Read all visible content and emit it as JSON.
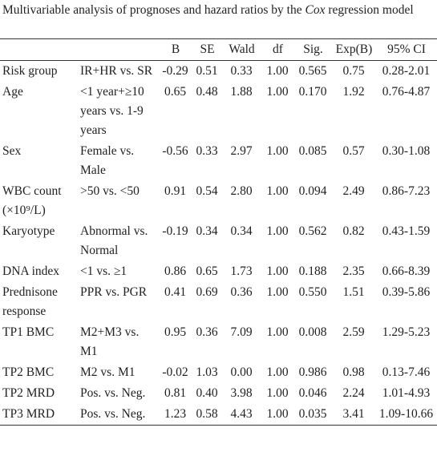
{
  "title": {
    "before": "Multivariable analysis of prognoses and hazard ratios by the ",
    "italic": "Cox",
    "after": " regression model"
  },
  "table": {
    "columns": [
      "B",
      "SE",
      "Wald",
      "df",
      "Sig.",
      "Exp(B)",
      "95% CI"
    ],
    "rows": [
      [
        "Risk group",
        "IR+HR vs. SR",
        "-0.29",
        "0.51",
        "0.33",
        "1.00",
        "0.565",
        "0.75",
        "0.28-2.01"
      ],
      [
        "Age",
        "<1 year+≥10 years vs. 1-9 years",
        "0.65",
        "0.48",
        "1.88",
        "1.00",
        "0.170",
        "1.92",
        "0.76-4.87"
      ],
      [
        "Sex",
        "Female vs. Male",
        "-0.56",
        "0.33",
        "2.97",
        "1.00",
        "0.085",
        "0.57",
        "0.30-1.08"
      ],
      [
        "WBC count (×10⁹/L)",
        ">50 vs. <50",
        "0.91",
        "0.54",
        "2.80",
        "1.00",
        "0.094",
        "2.49",
        "0.86-7.23"
      ],
      [
        "Karyotype",
        "Abnormal vs. Normal",
        "-0.19",
        "0.34",
        "0.34",
        "1.00",
        "0.562",
        "0.82",
        "0.43-1.59"
      ],
      [
        "DNA index",
        "<1 vs. ≥1",
        "0.86",
        "0.65",
        "1.73",
        "1.00",
        "0.188",
        "2.35",
        "0.66-8.39"
      ],
      [
        "Prednisone response",
        "PPR vs. PGR",
        "0.41",
        "0.69",
        "0.36",
        "1.00",
        "0.550",
        "1.51",
        "0.39-5.86"
      ],
      [
        "TP1 BMC",
        "M2+M3 vs. M1",
        "0.95",
        "0.36",
        "7.09",
        "1.00",
        "0.008",
        "2.59",
        "1.29-5.23"
      ],
      [
        "TP2 BMC",
        "M2 vs. M1",
        "-0.02",
        "1.03",
        "0.00",
        "1.00",
        "0.986",
        "0.98",
        "0.13-7.46"
      ],
      [
        "TP2 MRD",
        "Pos. vs. Neg.",
        "0.81",
        "0.40",
        "3.98",
        "1.00",
        "0.046",
        "2.24",
        "1.01-4.93"
      ],
      [
        "TP3 MRD",
        "Pos. vs. Neg.",
        "1.23",
        "0.58",
        "4.43",
        "1.00",
        "0.035",
        "3.41",
        "1.09-10.66"
      ]
    ]
  }
}
